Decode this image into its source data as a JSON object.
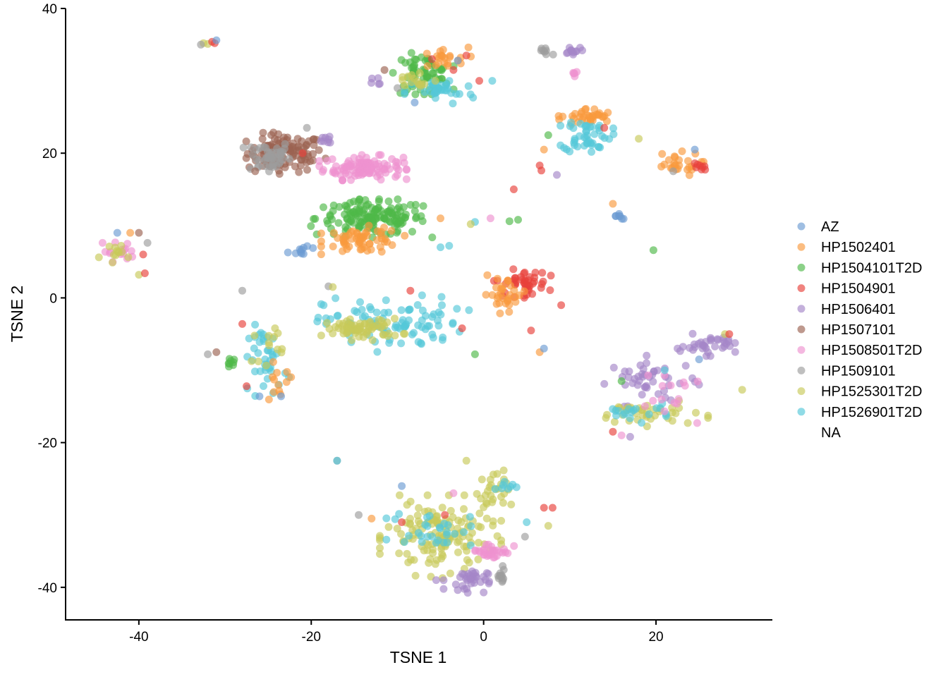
{
  "chart_data": {
    "type": "scatter",
    "xlabel": "TSNE 1",
    "ylabel": "TSNE 2",
    "xlim": [
      -48.5,
      33.5
    ],
    "ylim": [
      -44.5,
      40
    ],
    "x_ticks": [
      -40,
      -20,
      0,
      20
    ],
    "y_ticks": [
      -40,
      -20,
      0,
      20,
      40
    ],
    "x_tick_labels": [
      "-40",
      "-20",
      "0",
      "20"
    ],
    "y_tick_labels": [
      "-40",
      "-20",
      "0",
      "20",
      "40"
    ],
    "grid": false,
    "legend_position": "right",
    "point_alpha": 0.65,
    "legend": [
      {
        "name": "AZ",
        "color": "#6b9bd2"
      },
      {
        "name": "HP1502401",
        "color": "#f99a3d"
      },
      {
        "name": "HP1504101T2D",
        "color": "#4fb848"
      },
      {
        "name": "HP1504901",
        "color": "#e8413b"
      },
      {
        "name": "HP1506401",
        "color": "#a586c7"
      },
      {
        "name": "HP1507101",
        "color": "#9b6251"
      },
      {
        "name": "HP1508501T2D",
        "color": "#ee92cf"
      },
      {
        "name": "HP1509101",
        "color": "#9c9c9c"
      },
      {
        "name": "HP1525301T2D",
        "color": "#c7c959"
      },
      {
        "name": "HP1526901T2D",
        "color": "#55c7d8"
      },
      {
        "name": "NA",
        "color": null
      }
    ],
    "clusters": [
      {
        "series": "HP1507101",
        "center": [
          -23,
          20
        ],
        "spread": [
          2.2,
          1.3
        ],
        "count": 110
      },
      {
        "series": "HP1509101",
        "center": [
          -25,
          19.5
        ],
        "spread": [
          1.3,
          1.2
        ],
        "count": 45
      },
      {
        "series": "HP1506401",
        "center": [
          -18,
          22
        ],
        "spread": [
          0.4,
          0.4
        ],
        "count": 8
      },
      {
        "series": "HP1508501T2D",
        "center": [
          -14,
          18
        ],
        "spread": [
          2.3,
          0.8
        ],
        "count": 110
      },
      {
        "series": "HP1504101T2D",
        "center": [
          -13,
          11
        ],
        "spread": [
          3.2,
          1.2
        ],
        "count": 150
      },
      {
        "series": "HP1502401",
        "center": [
          -14,
          8
        ],
        "spread": [
          2.2,
          0.9
        ],
        "count": 60
      },
      {
        "series": "AZ",
        "center": [
          -21,
          6.5
        ],
        "spread": [
          0.9,
          0.3
        ],
        "count": 10
      },
      {
        "series": "HP1504101T2D",
        "center": [
          -7,
          31
        ],
        "spread": [
          1.6,
          1.3
        ],
        "count": 70
      },
      {
        "series": "HP1502401",
        "center": [
          -5,
          33
        ],
        "spread": [
          1.6,
          0.8
        ],
        "count": 22
      },
      {
        "series": "HP1526901T2D",
        "center": [
          -5,
          28.5
        ],
        "spread": [
          2,
          0.9
        ],
        "count": 35
      },
      {
        "series": "HP1525301T2D",
        "center": [
          -8,
          30
        ],
        "spread": [
          1.4,
          0.8
        ],
        "count": 15
      },
      {
        "series": "HP1506401",
        "center": [
          -12,
          30
        ],
        "spread": [
          0.6,
          0.3
        ],
        "count": 5
      },
      {
        "series": "HP1509101",
        "center": [
          7,
          34
        ],
        "spread": [
          0.5,
          0.6
        ],
        "count": 8
      },
      {
        "series": "HP1506401",
        "center": [
          10.5,
          34.3
        ],
        "spread": [
          0.6,
          0.3
        ],
        "count": 12
      },
      {
        "series": "HP1508501T2D",
        "center": [
          10.5,
          31
        ],
        "spread": [
          0.2,
          0.3
        ],
        "count": 5
      },
      {
        "series": "HP1502401",
        "center": [
          12,
          25
        ],
        "spread": [
          1.5,
          0.6
        ],
        "count": 35
      },
      {
        "series": "HP1526901T2D",
        "center": [
          12,
          22.5
        ],
        "spread": [
          1.4,
          1.2
        ],
        "count": 45
      },
      {
        "series": "HP1502401",
        "center": [
          22,
          18.5
        ],
        "spread": [
          1.6,
          0.8
        ],
        "count": 25
      },
      {
        "series": "HP1504901",
        "center": [
          25,
          18
        ],
        "spread": [
          0.4,
          0.4
        ],
        "count": 8
      },
      {
        "series": "AZ",
        "center": [
          15.5,
          11.3
        ],
        "spread": [
          0.5,
          0.2
        ],
        "count": 7
      },
      {
        "series": "HP1526901T2D",
        "center": [
          -10.5,
          -3.5
        ],
        "spread": [
          4,
          1.8
        ],
        "count": 90
      },
      {
        "series": "HP1525301T2D",
        "center": [
          -14,
          -4.3
        ],
        "spread": [
          2.2,
          0.7
        ],
        "count": 70
      },
      {
        "series": "HP1504901",
        "center": [
          4.5,
          2
        ],
        "spread": [
          1.5,
          0.9
        ],
        "count": 45
      },
      {
        "series": "HP1502401",
        "center": [
          2.5,
          0.5
        ],
        "spread": [
          1.3,
          1.2
        ],
        "count": 30
      },
      {
        "series": "HP1508501T2D",
        "center": [
          -42.5,
          6.5
        ],
        "spread": [
          1,
          0.7
        ],
        "count": 15
      },
      {
        "series": "HP1525301T2D",
        "center": [
          -42,
          6
        ],
        "spread": [
          1.2,
          0.8
        ],
        "count": 12
      },
      {
        "series": "HP1526901T2D",
        "center": [
          -25,
          -8.5
        ],
        "spread": [
          1.1,
          2.3
        ],
        "count": 40
      },
      {
        "series": "HP1525301T2D",
        "center": [
          -25,
          -6.5
        ],
        "spread": [
          0.9,
          1.3
        ],
        "count": 12
      },
      {
        "series": "HP1502401",
        "center": [
          -24,
          -11.5
        ],
        "spread": [
          1,
          1.2
        ],
        "count": 12
      },
      {
        "series": "HP1504101T2D",
        "center": [
          -29.3,
          -9
        ],
        "spread": [
          0.3,
          0.3
        ],
        "count": 8
      },
      {
        "series": "HP1506401",
        "center": [
          19.5,
          -11.5
        ],
        "spread": [
          2.5,
          1.6
        ],
        "count": 45
      },
      {
        "series": "HP1506401",
        "center": [
          26,
          -6.5
        ],
        "spread": [
          1.6,
          0.7
        ],
        "count": 35
      },
      {
        "series": "HP1525301T2D",
        "center": [
          19,
          -16
        ],
        "spread": [
          3.2,
          0.8
        ],
        "count": 40
      },
      {
        "series": "HP1526901T2D",
        "center": [
          17.5,
          -15.5
        ],
        "spread": [
          2.2,
          0.8
        ],
        "count": 18
      },
      {
        "series": "HP1508501T2D",
        "center": [
          22,
          -14
        ],
        "spread": [
          2.5,
          1.5
        ],
        "count": 15
      },
      {
        "series": "HP1525301T2D",
        "center": [
          -5,
          -33
        ],
        "spread": [
          3.2,
          2.6
        ],
        "count": 140
      },
      {
        "series": "HP1526901T2D",
        "center": [
          -6,
          -32
        ],
        "spread": [
          2.4,
          1.2
        ],
        "count": 30
      },
      {
        "series": "HP1508501T2D",
        "center": [
          1,
          -35
        ],
        "spread": [
          1.2,
          0.6
        ],
        "count": 30
      },
      {
        "series": "HP1506401",
        "center": [
          -2,
          -39
        ],
        "spread": [
          1.2,
          0.8
        ],
        "count": 35
      },
      {
        "series": "HP1509101",
        "center": [
          2,
          -38.5
        ],
        "spread": [
          0.3,
          0.7
        ],
        "count": 12
      },
      {
        "series": "HP1525301T2D",
        "center": [
          1,
          -27
        ],
        "spread": [
          1,
          1.5
        ],
        "count": 25
      },
      {
        "series": "HP1526901T2D",
        "center": [
          2.5,
          -26
        ],
        "spread": [
          0.6,
          0.4
        ],
        "count": 8
      }
    ],
    "points": [
      {
        "series": "HP1525301T2D",
        "x": -32.5,
        "y": 35.2
      },
      {
        "series": "HP1525301T2D",
        "x": -32.0,
        "y": 35.1
      },
      {
        "series": "HP1504901",
        "x": -31.5,
        "y": 35.4
      },
      {
        "series": "HP1504901",
        "x": -31.2,
        "y": 35.2
      },
      {
        "series": "AZ",
        "x": -31.0,
        "y": 35.6
      },
      {
        "series": "HP1509101",
        "x": -32.8,
        "y": 35.0
      },
      {
        "series": "HP1509101",
        "x": -28,
        "y": 1
      },
      {
        "series": "HP1509101",
        "x": -18,
        "y": 1.6
      },
      {
        "series": "HP1525301T2D",
        "x": -17.5,
        "y": 1.5
      },
      {
        "series": "HP1509101",
        "x": -17,
        "y": -22.5
      },
      {
        "series": "HP1526901T2D",
        "x": -17,
        "y": -22.5
      },
      {
        "series": "HP1509101",
        "x": -14.5,
        "y": -30
      },
      {
        "series": "HP1502401",
        "x": -13,
        "y": -30.5
      },
      {
        "series": "AZ",
        "x": -9.5,
        "y": -26
      },
      {
        "series": "HP1504101T2D",
        "x": 19.7,
        "y": 6.6
      },
      {
        "series": "HP1525301T2D",
        "x": 30,
        "y": -12.7
      },
      {
        "series": "HP1504901",
        "x": 3.5,
        "y": 15
      },
      {
        "series": "HP1508501T2D",
        "x": 0.8,
        "y": 11
      },
      {
        "series": "HP1526901T2D",
        "x": -1,
        "y": 10.5
      },
      {
        "series": "HP1525301T2D",
        "x": -1.5,
        "y": 10.2
      },
      {
        "series": "HP1504101T2D",
        "x": 3,
        "y": 10.6
      },
      {
        "series": "HP1504101T2D",
        "x": 4,
        "y": 10.8
      },
      {
        "series": "HP1502401",
        "x": -5,
        "y": 11
      },
      {
        "series": "HP1526901T2D",
        "x": -5,
        "y": 7
      },
      {
        "series": "HP1526901T2D",
        "x": -4,
        "y": 7.2
      },
      {
        "series": "HP1504101T2D",
        "x": -7,
        "y": 12.7
      },
      {
        "series": "HP1504101T2D",
        "x": -1,
        "y": -7.8
      },
      {
        "series": "HP1526901T2D",
        "x": 1,
        "y": 30
      },
      {
        "series": "HP1502401",
        "x": 15,
        "y": 13
      },
      {
        "series": "HP1525301T2D",
        "x": 18,
        "y": 22
      },
      {
        "series": "AZ",
        "x": 24.5,
        "y": 20.5
      },
      {
        "series": "HP1504901",
        "x": 5.5,
        "y": -4.5
      },
      {
        "series": "HP1504901",
        "x": 9,
        "y": -1
      },
      {
        "series": "HP1502401",
        "x": 6.5,
        "y": -7.5
      },
      {
        "series": "AZ",
        "x": 7,
        "y": -7
      },
      {
        "series": "HP1504901",
        "x": -8.5,
        "y": 1
      },
      {
        "series": "HP1504901",
        "x": -2.5,
        "y": -4.2
      },
      {
        "series": "HP1504901",
        "x": 7,
        "y": -29
      },
      {
        "series": "HP1504901",
        "x": 8,
        "y": -29
      },
      {
        "series": "HP1525301T2D",
        "x": 7.5,
        "y": -31.5
      },
      {
        "series": "HP1509101",
        "x": 4.8,
        "y": -33
      },
      {
        "series": "HP1525301T2D",
        "x": -40,
        "y": 3.2
      },
      {
        "series": "HP1504901",
        "x": -39.3,
        "y": 3.4
      },
      {
        "series": "HP1504901",
        "x": -39.5,
        "y": 6
      },
      {
        "series": "HP1509101",
        "x": -39,
        "y": 7.6
      },
      {
        "series": "AZ",
        "x": -42.5,
        "y": 9
      },
      {
        "series": "HP1502401",
        "x": -41,
        "y": 9
      },
      {
        "series": "HP1507101",
        "x": -40,
        "y": 9
      },
      {
        "series": "HP1504901",
        "x": -28,
        "y": -3.6
      },
      {
        "series": "HP1504901",
        "x": -27.5,
        "y": -12.2
      },
      {
        "series": "HP1509101",
        "x": -32,
        "y": -7.8
      },
      {
        "series": "HP1507101",
        "x": -31,
        "y": -7.5
      },
      {
        "series": "AZ",
        "x": -26,
        "y": -13.6
      },
      {
        "series": "AZ",
        "x": -23.5,
        "y": -13.6
      },
      {
        "series": "HP1525301T2D",
        "x": -24.2,
        "y": -4.2
      },
      {
        "series": "HP1506401",
        "x": 22.5,
        "y": -7
      },
      {
        "series": "HP1508501T2D",
        "x": 16,
        "y": -19
      },
      {
        "series": "HP1506401",
        "x": 17,
        "y": -19.2
      },
      {
        "series": "HP1504901",
        "x": 15,
        "y": -18.5
      },
      {
        "series": "HP1504101T2D",
        "x": 16,
        "y": -11.5
      },
      {
        "series": "HP1526901T2D",
        "x": 21,
        "y": -10
      },
      {
        "series": "AZ",
        "x": 25,
        "y": -8.5
      },
      {
        "series": "HP1525301T2D",
        "x": 28,
        "y": -5
      },
      {
        "series": "HP1504901",
        "x": 28.5,
        "y": -5
      },
      {
        "series": "HP1504901",
        "x": -6,
        "y": 33
      },
      {
        "series": "HP1504901",
        "x": -2,
        "y": 33.5
      },
      {
        "series": "HP1504901",
        "x": -3.5,
        "y": 31.5
      },
      {
        "series": "AZ",
        "x": -3,
        "y": 32.8
      },
      {
        "series": "HP1504901",
        "x": -0.5,
        "y": 30
      },
      {
        "series": "HP1507101",
        "x": -11.5,
        "y": 31.5
      },
      {
        "series": "HP1509101",
        "x": -10,
        "y": 29
      },
      {
        "series": "AZ",
        "x": -8,
        "y": 27
      },
      {
        "series": "HP1504901",
        "x": 6.5,
        "y": 18.3
      },
      {
        "series": "HP1504901",
        "x": 6.7,
        "y": 17.6
      },
      {
        "series": "HP1506401",
        "x": 8.5,
        "y": 17
      },
      {
        "series": "HP1504901",
        "x": 14,
        "y": 23.5
      },
      {
        "series": "HP1504101T2D",
        "x": 7.5,
        "y": 22.5
      },
      {
        "series": "HP1502401",
        "x": 7,
        "y": 20.5
      },
      {
        "series": "HP1509101",
        "x": 22,
        "y": 17.5
      },
      {
        "series": "HP1504901",
        "x": -21,
        "y": 20
      },
      {
        "series": "HP1509101",
        "x": -20.5,
        "y": 23.5
      },
      {
        "series": "HP1507101",
        "x": -26.5,
        "y": 17.5
      },
      {
        "series": "HP1504901",
        "x": -9.5,
        "y": -31
      },
      {
        "series": "HP1504901",
        "x": -4.5,
        "y": -30
      },
      {
        "series": "HP1508501T2D",
        "x": -3.5,
        "y": -27
      },
      {
        "series": "HP1525301T2D",
        "x": -2,
        "y": -22.5
      },
      {
        "series": "HP1506401",
        "x": -5.5,
        "y": -39
      },
      {
        "series": "HP1526901T2D",
        "x": 5,
        "y": -31
      }
    ]
  }
}
